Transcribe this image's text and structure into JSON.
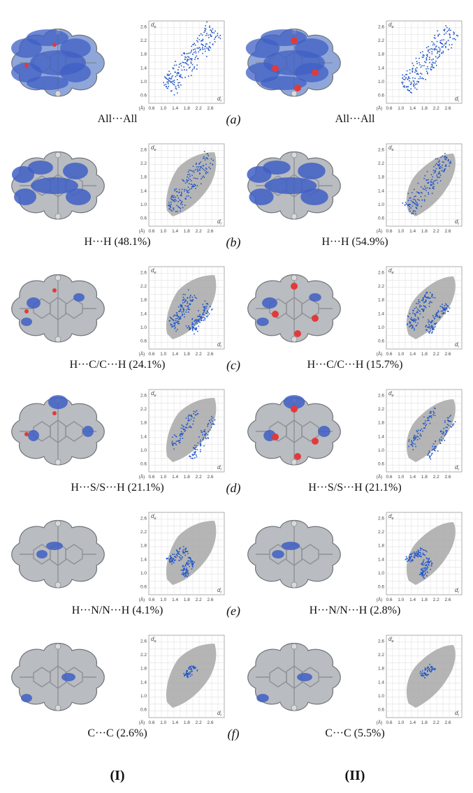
{
  "axis": {
    "y_label": "d",
    "y_sub": "e",
    "x_label": "d",
    "x_sub": "i",
    "unit": "(Å)",
    "ticks": [
      "0.6",
      "1.0",
      "1.4",
      "1.8",
      "2.2",
      "2.6"
    ]
  },
  "compounds": {
    "I": "I",
    "II": "II"
  },
  "rows": [
    {
      "letter": "a",
      "caption_I": "All···All",
      "caption_II": "All···All",
      "highlight": "all"
    },
    {
      "letter": "b",
      "caption_I": "H···H (48.1%)",
      "caption_II": "H···H (54.9%)",
      "highlight": "HH"
    },
    {
      "letter": "c",
      "caption_I": "H···C/C···H (24.1%)",
      "caption_II": "H···C/C···H (15.7%)",
      "highlight": "HC"
    },
    {
      "letter": "d",
      "caption_I": "H···S/S···H (21.1%)",
      "caption_II": "H···S/S···H (21.1%)",
      "highlight": "HS"
    },
    {
      "letter": "e",
      "caption_I": "H···N/N···H (4.1%)",
      "caption_II": "H···N/N···H (2.8%)",
      "highlight": "HN"
    },
    {
      "letter": "f",
      "caption_I": "C···C (2.6%)",
      "caption_II": "C···C (5.5%)",
      "highlight": "CC"
    }
  ],
  "colors": {
    "surface_gray": "#b9bcc0",
    "surface_blue": "#3f5fc4",
    "contact_red": "#e23a3a",
    "plot_gray": "#a8a8a8",
    "plot_blue": "#1f55c8",
    "grid": "#d9d9d9"
  }
}
